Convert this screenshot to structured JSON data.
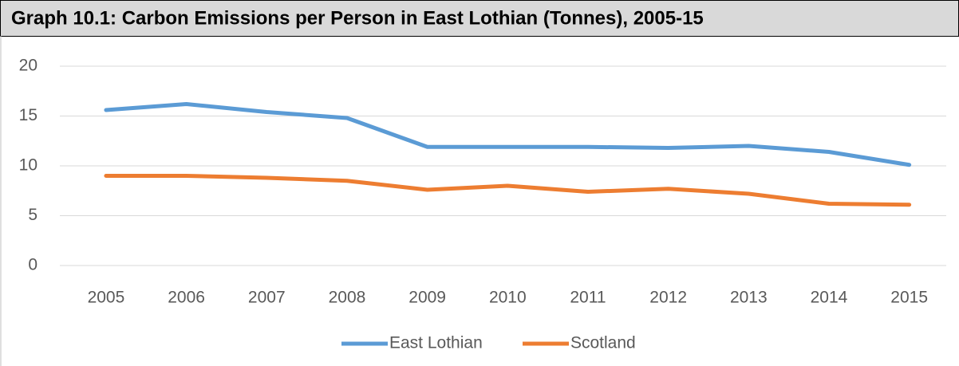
{
  "chart_data": {
    "type": "line",
    "title": "Graph 10.1: Carbon Emissions per Person in East Lothian (Tonnes), 2005-15",
    "categories": [
      "2005",
      "2006",
      "2007",
      "2008",
      "2009",
      "2010",
      "2011",
      "2012",
      "2013",
      "2014",
      "2015"
    ],
    "series": [
      {
        "name": "East Lothian",
        "color": "#5b9bd5",
        "values": [
          15.6,
          16.2,
          15.4,
          14.8,
          11.9,
          11.9,
          11.9,
          11.8,
          12.0,
          11.4,
          10.1
        ]
      },
      {
        "name": "Scotland",
        "color": "#ed7d31",
        "values": [
          9.0,
          9.0,
          8.8,
          8.5,
          7.6,
          8.0,
          7.4,
          7.7,
          7.2,
          6.2,
          6.1
        ]
      }
    ],
    "ylim": [
      0,
      20
    ],
    "yticks": [
      0,
      5,
      10,
      15,
      20
    ],
    "grid": true,
    "legend": "bottom"
  }
}
